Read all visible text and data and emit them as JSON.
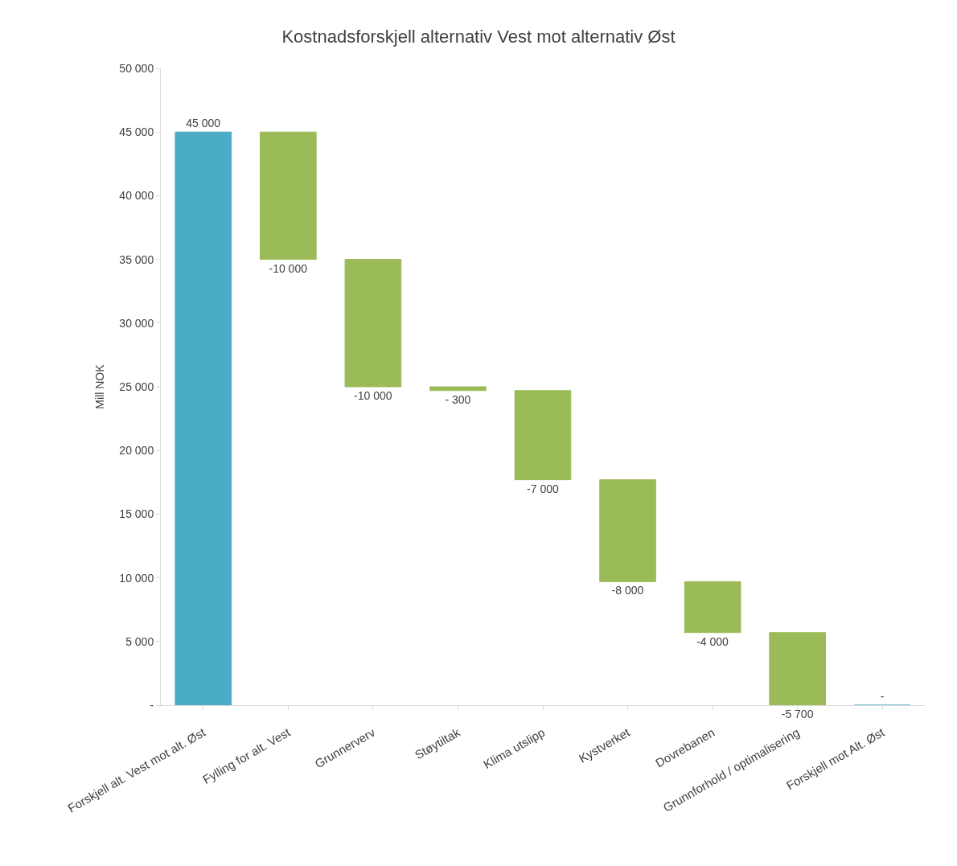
{
  "chart_data": {
    "type": "bar",
    "title": "Kostnadsforskjell alternativ Vest mot alternativ Øst",
    "ylabel": "Mill NOK",
    "categories": [
      "Forskjell alt. Vest mot alt. Øst",
      "Fylling for alt. Vest",
      "Grunnerverv",
      "Støytiltak",
      "Klima utslipp",
      "Kystverket",
      "Dovrebanen",
      "Grunnforhold / optimalisering",
      "Forskjell mot Alt. Øst"
    ],
    "values": [
      45000,
      -10000,
      -10000,
      -300,
      -7000,
      -8000,
      -4000,
      -5700,
      0
    ],
    "base": [
      0,
      45000,
      35000,
      25000,
      24700,
      17700,
      9700,
      5700,
      0
    ],
    "colors": [
      "#4bacc6",
      "#9bbb59",
      "#9bbb59",
      "#9bbb59",
      "#9bbb59",
      "#9bbb59",
      "#9bbb59",
      "#9bbb59",
      "#4bacc6"
    ],
    "value_labels": [
      "45 000",
      "-10 000",
      "-10 000",
      "- 300",
      "-7 000",
      "-8 000",
      "-4 000",
      "-5 700",
      "-"
    ],
    "ylim": [
      0,
      50000
    ],
    "yticks": [
      {
        "value": 0,
        "label": "-"
      },
      {
        "value": 5000,
        "label": "5 000"
      },
      {
        "value": 10000,
        "label": "10 000"
      },
      {
        "value": 15000,
        "label": "15 000"
      },
      {
        "value": 20000,
        "label": "20 000"
      },
      {
        "value": 25000,
        "label": "25 000"
      },
      {
        "value": 30000,
        "label": "30 000"
      },
      {
        "value": 35000,
        "label": "35 000"
      },
      {
        "value": 40000,
        "label": "40 000"
      },
      {
        "value": 45000,
        "label": "45 000"
      },
      {
        "value": 50000,
        "label": "50 000"
      }
    ],
    "legend": false
  }
}
